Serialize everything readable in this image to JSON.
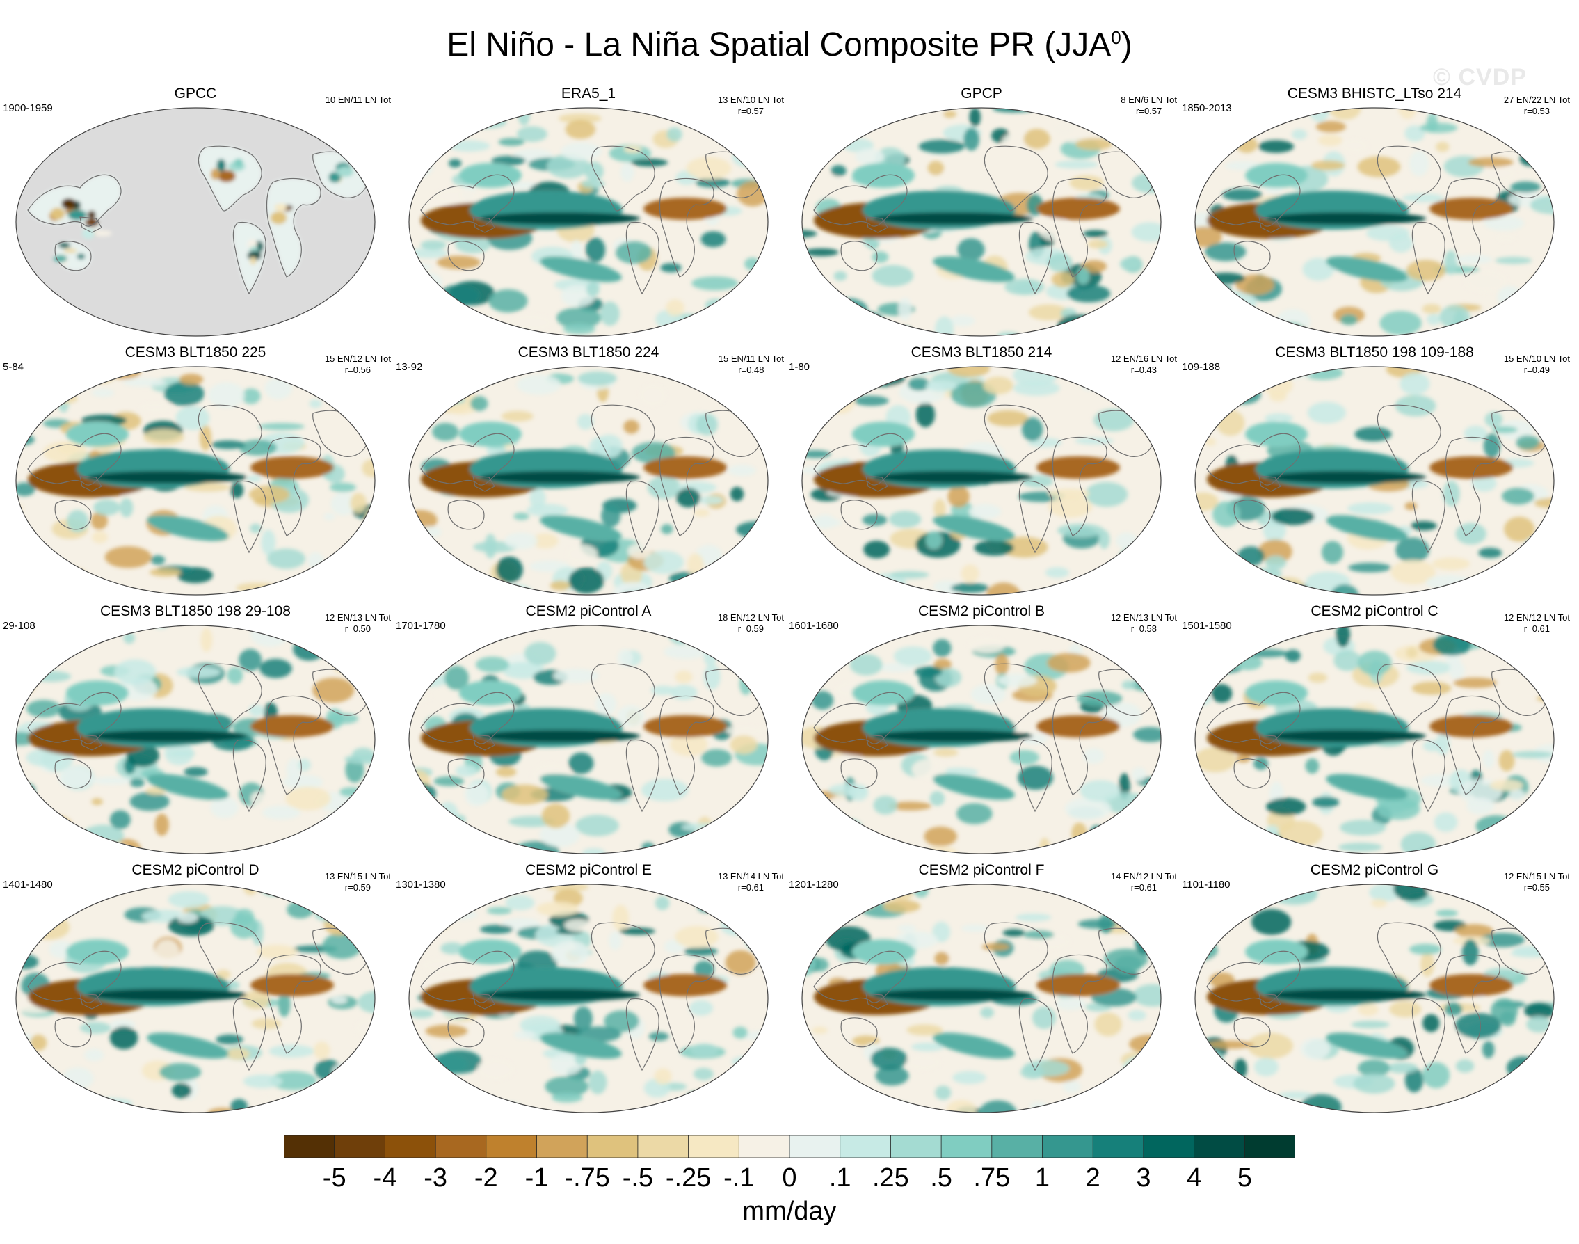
{
  "title": "El Niño - La Niña Spatial Composite PR (JJA",
  "title_superscript": "0",
  "title_close": ")",
  "watermark": "© CVDP",
  "chart_data": {
    "type": "map-panel-grid",
    "variable": "PR",
    "season": "JJA0",
    "units": "mm/day",
    "colorbar": {
      "levels": [
        "-5",
        "-4",
        "-3",
        "-2",
        "-1",
        "-.75",
        "-.5",
        "-.25",
        "-.1",
        "0",
        ".1",
        ".25",
        ".5",
        ".75",
        "1",
        "2",
        "3",
        "4",
        "5"
      ],
      "colors": [
        "#543005",
        "#6f3f0a",
        "#8c510a",
        "#a86820",
        "#bf812d",
        "#d1a35a",
        "#dfc27d",
        "#ecd9a6",
        "#f6e8c3",
        "#f6f1e6",
        "#e8f2ef",
        "#c7eae5",
        "#a4dbd2",
        "#80cdc1",
        "#58b0a5",
        "#35978f",
        "#16807a",
        "#01665e",
        "#014c44",
        "#003c30"
      ]
    },
    "panels": [
      {
        "title": "GPCC",
        "years": "1900-1959",
        "counts": "10 EN/11 LN Tot",
        "r": "",
        "masked": true
      },
      {
        "title": "ERA5_1",
        "years": "",
        "counts": "13 EN/10 LN Tot",
        "r": "r=0.57",
        "masked": false
      },
      {
        "title": "GPCP",
        "years": "",
        "counts": "8 EN/6 LN Tot",
        "r": "r=0.57",
        "masked": false
      },
      {
        "title": "CESM3 BHISTC_LTso 214",
        "years": "1850-2013",
        "counts": "27 EN/22 LN Tot",
        "r": "r=0.53",
        "masked": false
      },
      {
        "title": "CESM3 BLT1850 225",
        "years": "5-84",
        "counts": "15 EN/12 LN Tot",
        "r": "r=0.56",
        "masked": false
      },
      {
        "title": "CESM3 BLT1850 224",
        "years": "13-92",
        "counts": "15 EN/11 LN Tot",
        "r": "r=0.48",
        "masked": false
      },
      {
        "title": "CESM3 BLT1850 214",
        "years": "1-80",
        "counts": "12 EN/16 LN Tot",
        "r": "r=0.43",
        "masked": false
      },
      {
        "title": "CESM3 BLT1850 198 109-188",
        "years": "109-188",
        "counts": "15 EN/10 LN Tot",
        "r": "r=0.49",
        "masked": false
      },
      {
        "title": "CESM3 BLT1850 198 29-108",
        "years": "29-108",
        "counts": "12 EN/13 LN Tot",
        "r": "r=0.50",
        "masked": false
      },
      {
        "title": "CESM2 piControl A",
        "years": "1701-1780",
        "counts": "18 EN/12 LN Tot",
        "r": "r=0.59",
        "masked": false
      },
      {
        "title": "CESM2 piControl B",
        "years": "1601-1680",
        "counts": "12 EN/13 LN Tot",
        "r": "r=0.58",
        "masked": false
      },
      {
        "title": "CESM2 piControl C",
        "years": "1501-1580",
        "counts": "12 EN/12 LN Tot",
        "r": "r=0.61",
        "masked": false
      },
      {
        "title": "CESM2 piControl D",
        "years": "1401-1480",
        "counts": "13 EN/15 LN Tot",
        "r": "r=0.59",
        "masked": false
      },
      {
        "title": "CESM2 piControl E",
        "years": "1301-1380",
        "counts": "13 EN/14 LN Tot",
        "r": "r=0.61",
        "masked": false
      },
      {
        "title": "CESM2 piControl F",
        "years": "1201-1280",
        "counts": "14 EN/12 LN Tot",
        "r": "r=0.61",
        "masked": false
      },
      {
        "title": "CESM2 piControl G",
        "years": "1101-1180",
        "counts": "12 EN/15 LN Tot",
        "r": "r=0.55",
        "masked": false
      }
    ]
  }
}
